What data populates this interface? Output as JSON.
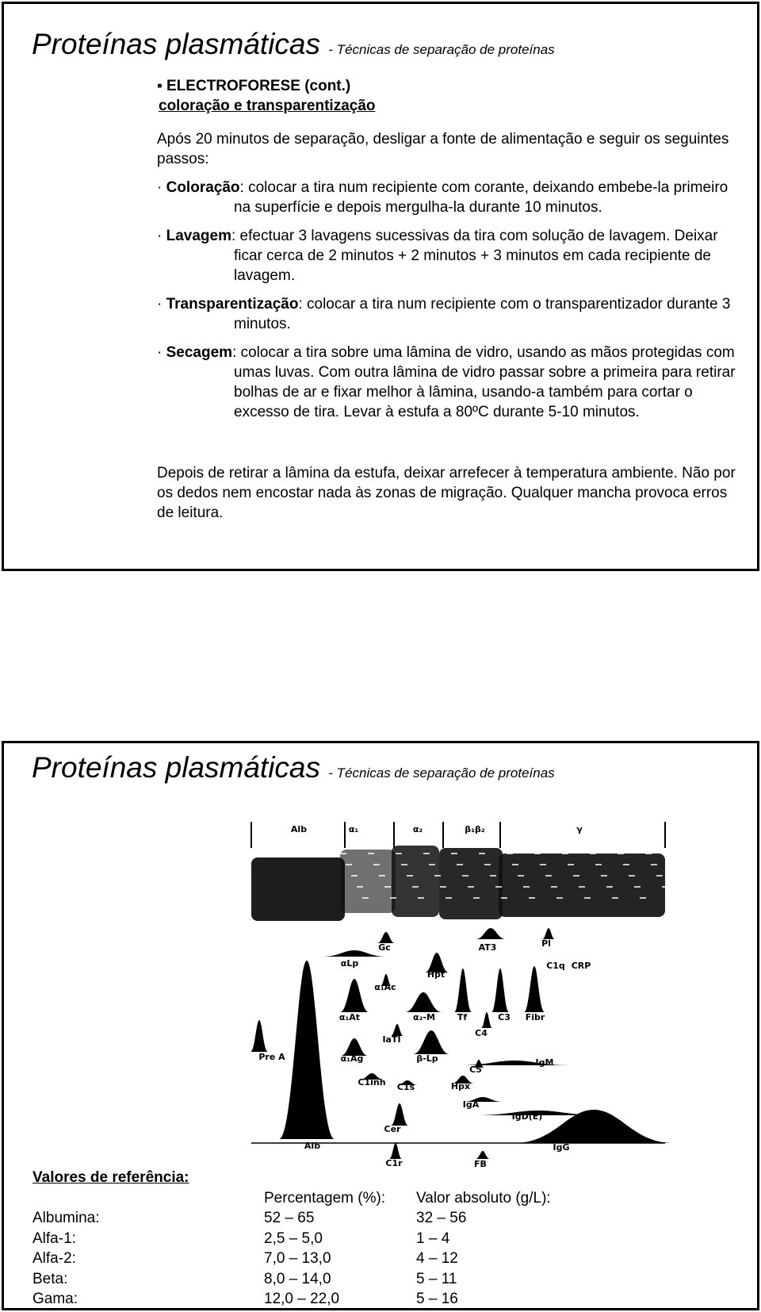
{
  "slide1": {
    "title": "Proteínas plasmáticas",
    "subtitle": "- Técnicas de separação de proteínas",
    "heading": "ELECTROFORESE (cont.)",
    "subheading": "coloração e transparentização",
    "intro": "Após 20 minutos de separação, desligar a fonte de alimentação e seguir os seguintes passos:",
    "steps": [
      {
        "term": "Coloração",
        "text": ": colocar a tira num recipiente com corante, deixando embebe-la primeiro na superfície e depois mergulha-la durante 10 minutos."
      },
      {
        "term": "Lavagem",
        "text": ": efectuar 3 lavagens sucessivas da tira com solução de lavagem. Deixar ficar cerca de 2 minutos + 2 minutos + 3 minutos em cada recipiente de lavagem."
      },
      {
        "term": "Transparentização",
        "text": ": colocar a tira num recipiente com o transparentizador durante 3 minutos."
      },
      {
        "term": "Secagem",
        "text": ": colocar a tira sobre uma lâmina de vidro, usando as mãos protegidas com umas luvas. Com outra lâmina de vidro passar sobre a primeira para retirar bolhas de ar e fixar melhor à lâmina, usando-a também para cortar o excesso de tira. Levar à estufa a 80ºC durante 5-10 minutos."
      }
    ],
    "closing": "Depois de retirar a lâmina da estufa, deixar arrefecer à temperatura ambiente. Não por os dedos nem encostar nada às zonas de migração. Qualquer mancha provoca erros de leitura."
  },
  "slide2": {
    "title": "Proteínas plasmáticas",
    "subtitle": "- Técnicas de separação de proteínas",
    "figure_labels": [
      "Alb",
      "α₁",
      "α₂",
      "β₁β₂",
      "γ",
      "Gc",
      "AT3",
      "Pl",
      "C1q",
      "CRP",
      "αLp",
      "Hpt",
      "α₁Ac",
      "α₁At",
      "α₂-M",
      "Tf",
      "C3",
      "Fibr",
      "IaTI",
      "C4",
      "Pre A",
      "α₁Ag",
      "β-Lp",
      "C5",
      "IgM",
      "C1inh",
      "C1s",
      "Hpx",
      "IgA",
      "IgD(E)",
      "Cer",
      "Alb",
      "IgG",
      "C1r",
      "FB"
    ],
    "table": {
      "heading": "Valores de referência:",
      "columns": [
        "Percentagem (%):",
        "Valor absoluto (g/L):"
      ],
      "rows": [
        [
          "Albumina:",
          "52 – 65",
          "32 – 56"
        ],
        [
          "Alfa-1:",
          "2,5 – 5,0",
          "1 – 4"
        ],
        [
          "Alfa-2:",
          "7,0 – 13,0",
          "4 – 12"
        ],
        [
          "Beta:",
          "8,0 – 14,0",
          "5 – 11"
        ],
        [
          "Gama:",
          "12,0 – 22,0",
          "5 – 16"
        ]
      ]
    }
  }
}
